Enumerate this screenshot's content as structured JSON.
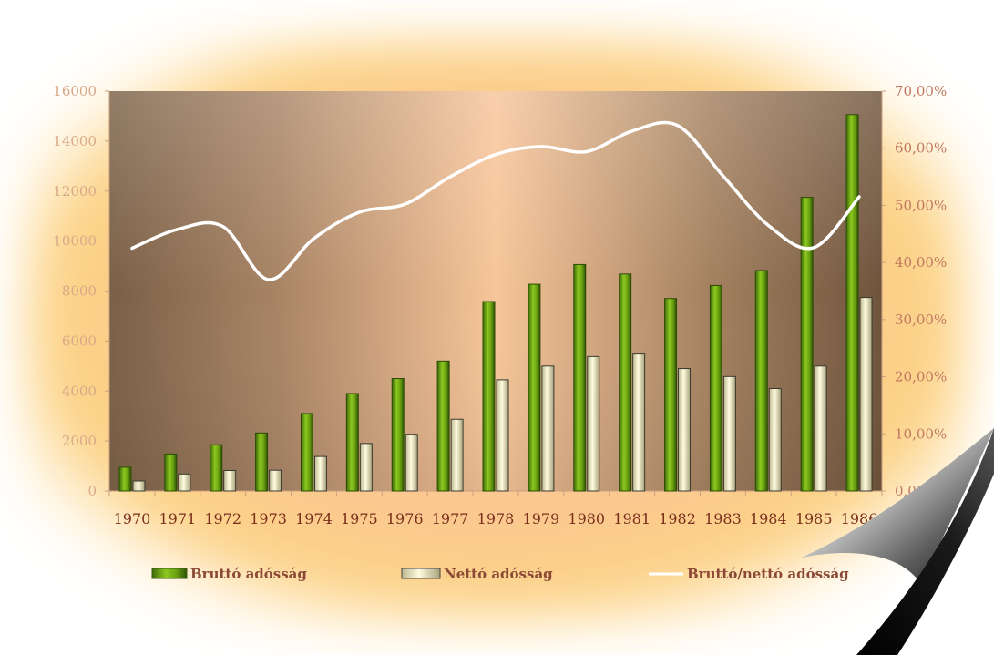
{
  "chart_data": {
    "type": "bar",
    "categories": [
      "1970",
      "1971",
      "1972",
      "1973",
      "1974",
      "1975",
      "1976",
      "1977",
      "1978",
      "1979",
      "1980",
      "1981",
      "1982",
      "1983",
      "1984",
      "1985",
      "1986"
    ],
    "series": [
      {
        "name": "Bruttó adósság",
        "kind": "bar",
        "axis": "left",
        "color": "#6aa010",
        "values": [
          950,
          1480,
          1850,
          2320,
          3100,
          3900,
          4500,
          5200,
          7580,
          8270,
          9060,
          8680,
          7700,
          8220,
          8820,
          11750,
          15060
        ]
      },
      {
        "name": "Nettó adósság",
        "kind": "bar",
        "axis": "left",
        "color": "#f2eec2",
        "values": [
          400,
          680,
          820,
          830,
          1380,
          1900,
          2270,
          2870,
          4450,
          5000,
          5380,
          5480,
          4900,
          4580,
          4100,
          5000,
          7740
        ]
      },
      {
        "name": "Bruttó/nettó adósság",
        "kind": "line",
        "axis": "right",
        "color": "#ffffff",
        "values": [
          42.5,
          45.8,
          46.3,
          37.0,
          44.2,
          48.8,
          50.2,
          55.0,
          58.9,
          60.3,
          59.4,
          63.0,
          64.0,
          55.2,
          46.5,
          42.6,
          51.5
        ]
      }
    ],
    "ylim": [
      0,
      16000
    ],
    "yticks": [
      "0",
      "2000",
      "4000",
      "6000",
      "8000",
      "10000",
      "12000",
      "14000",
      "16000"
    ],
    "ylim_right": [
      0,
      70
    ],
    "yticks_right": [
      "0,00%",
      "10,00%",
      "20,00%",
      "30,00%",
      "40,00%",
      "50,00%",
      "60,00%",
      "70,00%"
    ],
    "legend_position": "bottom",
    "grid": false
  }
}
